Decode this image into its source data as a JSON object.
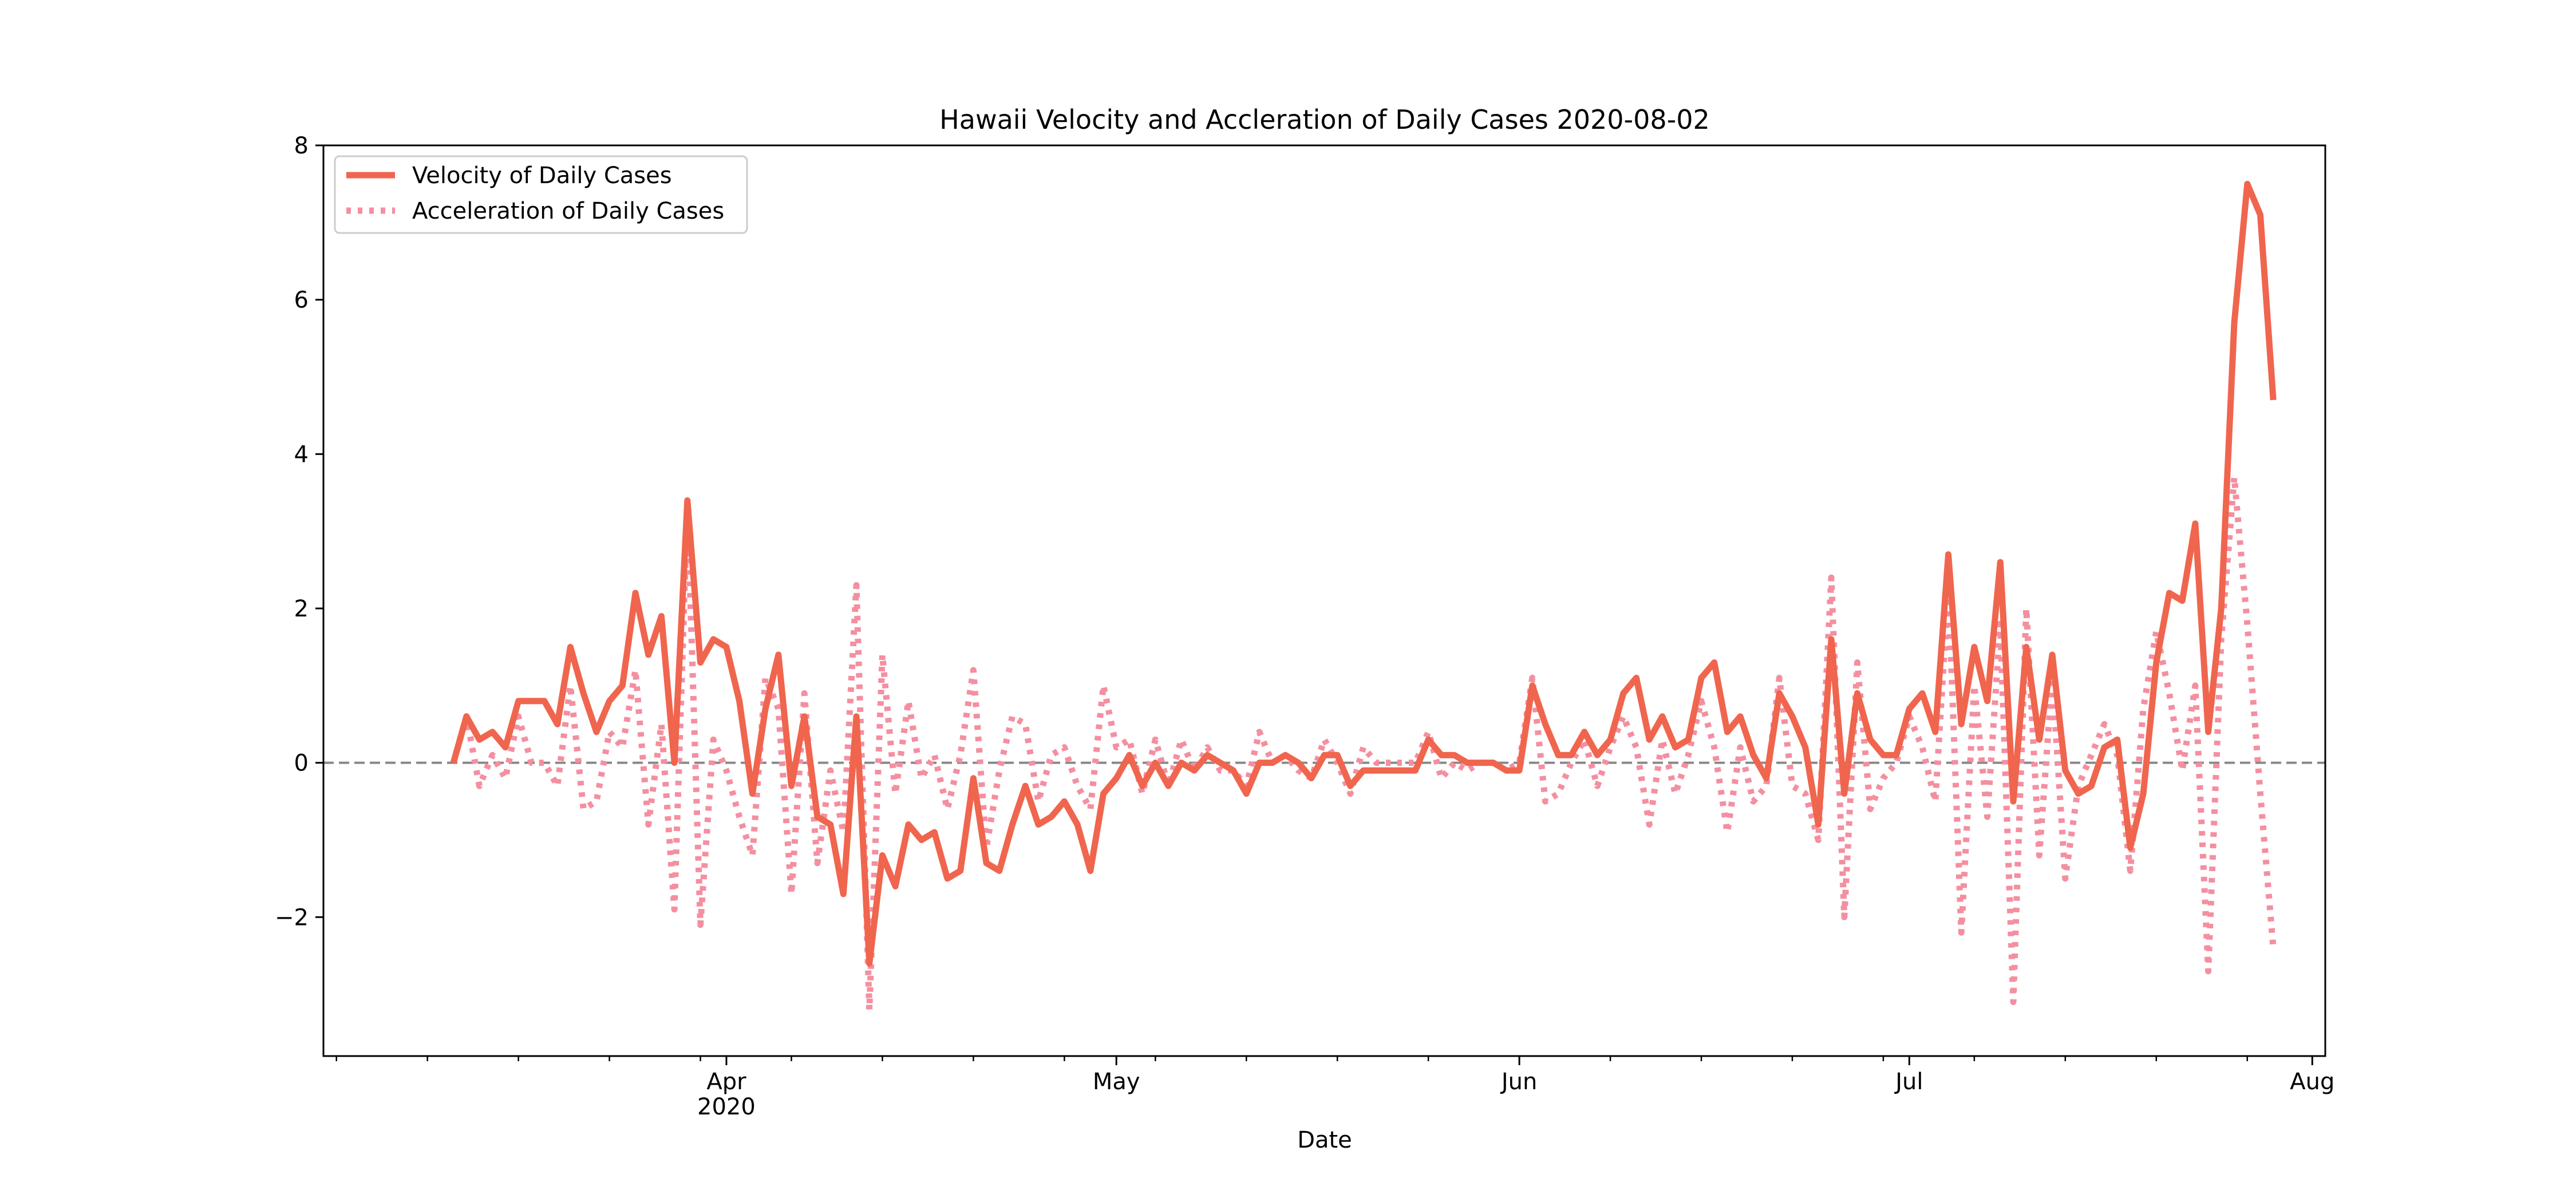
{
  "chart_data": {
    "type": "line",
    "title": "Hawaii Velocity and Accleration of Daily Cases 2020-08-02",
    "xlabel": "Date",
    "ylabel": "",
    "x_start_date": "2020-03-11",
    "xlim": [
      "2020-03-01",
      "2020-08-02"
    ],
    "ylim": [
      -3.8,
      8.0
    ],
    "y_ticks": [
      -2,
      0,
      2,
      4,
      6,
      8
    ],
    "y_tick_labels": [
      "−2",
      "0",
      "2",
      "4",
      "6",
      "8"
    ],
    "x_major_ticks": [
      {
        "date": "2020-04-01",
        "label": "Apr",
        "sublabel": "2020"
      },
      {
        "date": "2020-05-01",
        "label": "May",
        "sublabel": ""
      },
      {
        "date": "2020-06-01",
        "label": "Jun",
        "sublabel": ""
      },
      {
        "date": "2020-07-01",
        "label": "Jul",
        "sublabel": ""
      },
      {
        "date": "2020-08-01",
        "label": "Aug",
        "sublabel": ""
      }
    ],
    "zero_line": {
      "y": 0,
      "style": "dashed",
      "color": "#888888"
    },
    "legend_position": "upper left",
    "grid": false,
    "series": [
      {
        "name": "Velocity of Daily Cases",
        "style": "solid",
        "color": "#f0654e",
        "values": [
          0.0,
          0.6,
          0.3,
          0.4,
          0.2,
          0.8,
          0.8,
          0.8,
          0.5,
          1.5,
          0.9,
          0.4,
          0.8,
          1.0,
          2.2,
          1.4,
          1.9,
          0.0,
          3.4,
          1.3,
          1.6,
          1.5,
          0.8,
          -0.4,
          0.7,
          1.4,
          -0.3,
          0.6,
          -0.7,
          -0.8,
          -1.7,
          0.6,
          -2.6,
          -1.2,
          -1.6,
          -0.8,
          -1.0,
          -0.9,
          -1.5,
          -1.4,
          -0.2,
          -1.3,
          -1.4,
          -0.8,
          -0.3,
          -0.8,
          -0.7,
          -0.5,
          -0.8,
          -1.4,
          -0.4,
          -0.2,
          0.1,
          -0.3,
          0.0,
          -0.3,
          0.0,
          -0.1,
          0.1,
          0.0,
          -0.1,
          -0.4,
          0.0,
          0.0,
          0.1,
          0.0,
          -0.2,
          0.1,
          0.1,
          -0.3,
          -0.1,
          -0.1,
          -0.1,
          -0.1,
          -0.1,
          0.3,
          0.1,
          0.1,
          0.0,
          0.0,
          0.0,
          -0.1,
          -0.1,
          1.0,
          0.5,
          0.1,
          0.1,
          0.4,
          0.1,
          0.3,
          0.9,
          1.1,
          0.3,
          0.6,
          0.2,
          0.3,
          1.1,
          1.3,
          0.4,
          0.6,
          0.1,
          -0.2,
          0.9,
          0.6,
          0.2,
          -0.8,
          1.6,
          -0.4,
          0.9,
          0.3,
          0.1,
          0.1,
          0.7,
          0.9,
          0.4,
          2.7,
          0.5,
          1.5,
          0.8,
          2.6,
          -0.5,
          1.5,
          0.3,
          1.4,
          -0.1,
          -0.4,
          -0.3,
          0.2,
          0.3,
          -1.1,
          -0.4,
          1.3,
          2.2,
          2.1,
          3.1,
          0.4,
          2.0,
          5.7,
          7.5,
          7.1,
          4.7
        ]
      },
      {
        "name": "Acceleration of Daily Cases",
        "style": "dotted",
        "color": "#f48fa0",
        "values": [
          0.0,
          0.6,
          -0.3,
          0.1,
          -0.2,
          0.6,
          0.0,
          0.0,
          -0.3,
          1.0,
          -0.6,
          -0.5,
          0.4,
          0.2,
          1.2,
          -0.8,
          0.5,
          -1.9,
          3.4,
          -2.1,
          0.3,
          -0.1,
          -0.7,
          -1.2,
          1.1,
          0.7,
          -1.7,
          0.9,
          -1.3,
          -0.1,
          -0.9,
          2.3,
          -3.2,
          1.4,
          -0.4,
          0.8,
          -0.2,
          0.1,
          -0.6,
          0.1,
          1.2,
          -1.1,
          -0.1,
          0.6,
          0.5,
          -0.5,
          0.1,
          0.2,
          -0.3,
          -0.6,
          1.0,
          0.2,
          0.3,
          -0.4,
          0.3,
          -0.3,
          0.3,
          -0.1,
          0.2,
          -0.1,
          -0.1,
          -0.3,
          0.4,
          0.0,
          0.1,
          -0.1,
          -0.2,
          0.3,
          0.0,
          -0.4,
          0.2,
          0.0,
          0.0,
          0.0,
          0.0,
          0.4,
          -0.2,
          0.0,
          -0.1,
          0.0,
          0.0,
          -0.1,
          0.0,
          1.1,
          -0.5,
          -0.4,
          0.0,
          0.3,
          -0.3,
          0.2,
          0.6,
          0.2,
          -0.8,
          0.3,
          -0.4,
          0.1,
          0.8,
          0.2,
          -0.9,
          0.2,
          -0.5,
          -0.3,
          1.1,
          -0.3,
          -0.4,
          -1.0,
          2.4,
          -2.0,
          1.3,
          -0.6,
          -0.2,
          0.0,
          0.6,
          0.2,
          -0.5,
          2.3,
          -2.2,
          1.0,
          -0.7,
          1.8,
          -3.1,
          2.0,
          -1.2,
          1.1,
          -1.5,
          -0.3,
          0.1,
          0.5,
          0.1,
          -1.4,
          0.7,
          1.7,
          0.9,
          -0.1,
          1.0,
          -2.7,
          1.6,
          3.7,
          1.8,
          -0.4,
          -2.4
        ]
      }
    ]
  }
}
